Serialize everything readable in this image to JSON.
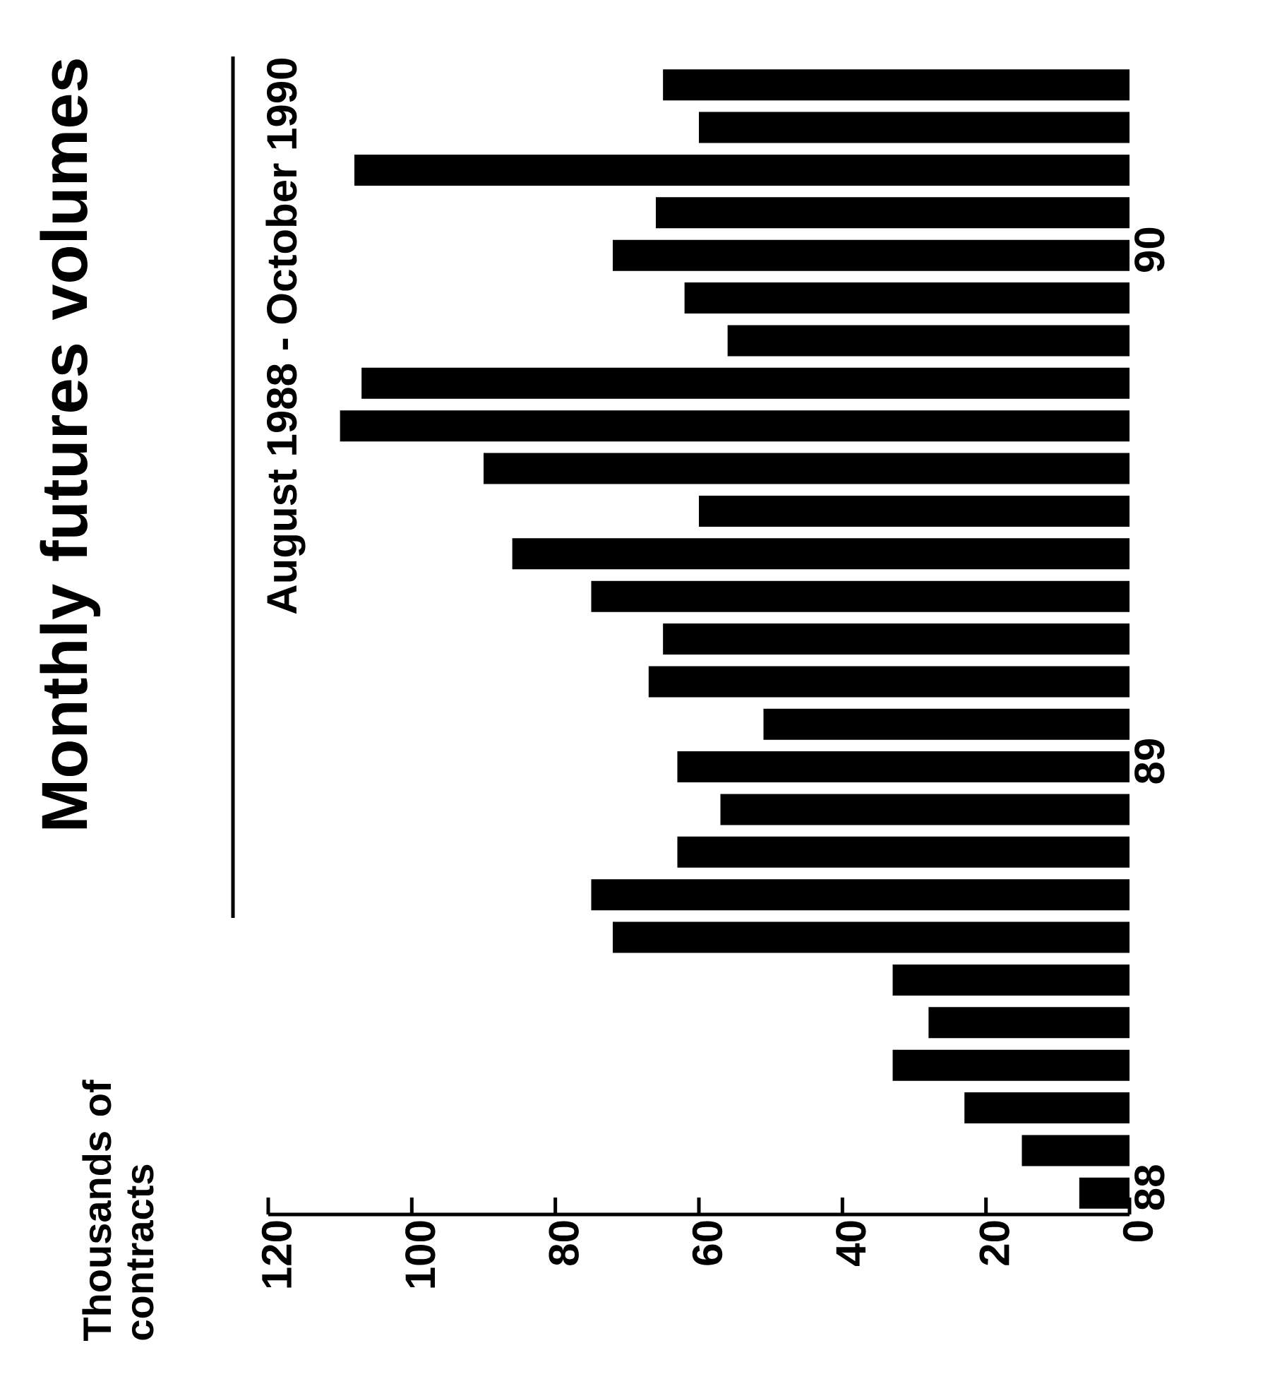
{
  "chart_data": {
    "type": "bar",
    "orientation": "horizontal",
    "title": "Monthly futures volumes",
    "subtitle": "August 1988 - October 1990",
    "annotations": [
      "Thousands of contracts"
    ],
    "categories": [
      null,
      null,
      null,
      null,
      "90",
      null,
      null,
      null,
      null,
      null,
      null,
      null,
      null,
      null,
      null,
      null,
      "89",
      null,
      null,
      null,
      null,
      null,
      null,
      null,
      null,
      null,
      "88"
    ],
    "values": [
      65,
      60,
      108,
      66,
      72,
      62,
      56,
      107,
      110,
      90,
      60,
      86,
      75,
      65,
      67,
      51,
      63,
      57,
      63,
      75,
      72,
      33,
      28,
      33,
      23,
      15,
      7
    ],
    "color": "#000000",
    "xlim": [
      120,
      0
    ],
    "xticks": [
      0,
      20,
      40,
      60,
      80,
      100,
      120
    ]
  }
}
